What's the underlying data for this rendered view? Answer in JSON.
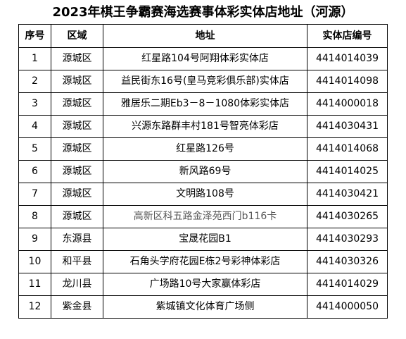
{
  "title": "2023年棋王争霸赛海选赛事体彩实体店地址（河源）",
  "table": {
    "headers": [
      "序号",
      "区域",
      "地址",
      "实体店编号"
    ],
    "rows": [
      {
        "seq": "1",
        "area": "源城区",
        "address": "红星路104号阿翔体彩实体店",
        "code": "4414014039"
      },
      {
        "seq": "2",
        "area": "源城区",
        "address": "益民街东16号(皇马竞彩俱乐部)实体店",
        "code": "4414014098"
      },
      {
        "seq": "3",
        "area": "源城区",
        "address": "雅居乐二期Eb3－8－1080体彩实体店",
        "code": "4414000018"
      },
      {
        "seq": "4",
        "area": "源城区",
        "address": "兴源东路群丰村181号智亮体彩店",
        "code": "4414030431"
      },
      {
        "seq": "5",
        "area": "源城区",
        "address": "红星路126号",
        "code": "4414014068"
      },
      {
        "seq": "6",
        "area": "源城区",
        "address": "新风路69号",
        "code": "4414014025"
      },
      {
        "seq": "7",
        "area": "源城区",
        "address": "文明路108号",
        "code": "4414030421"
      },
      {
        "seq": "8",
        "area": "源城区",
        "address": "高新区科五路金泽苑西门b116卡",
        "code": "4414030265"
      },
      {
        "seq": "9",
        "area": "东源县",
        "address": "宝晟花园B1",
        "code": "4414030293"
      },
      {
        "seq": "10",
        "area": "和平县",
        "address": "石角头学府花园E栋2号彩神体彩店",
        "code": "4414030326"
      },
      {
        "seq": "11",
        "area": "龙川县",
        "address": "广场路10号大家赢体彩店",
        "code": "4414014029"
      },
      {
        "seq": "12",
        "area": "紫金县",
        "address": "紫城镇文化体育广场侧",
        "code": "4414000050"
      }
    ]
  }
}
